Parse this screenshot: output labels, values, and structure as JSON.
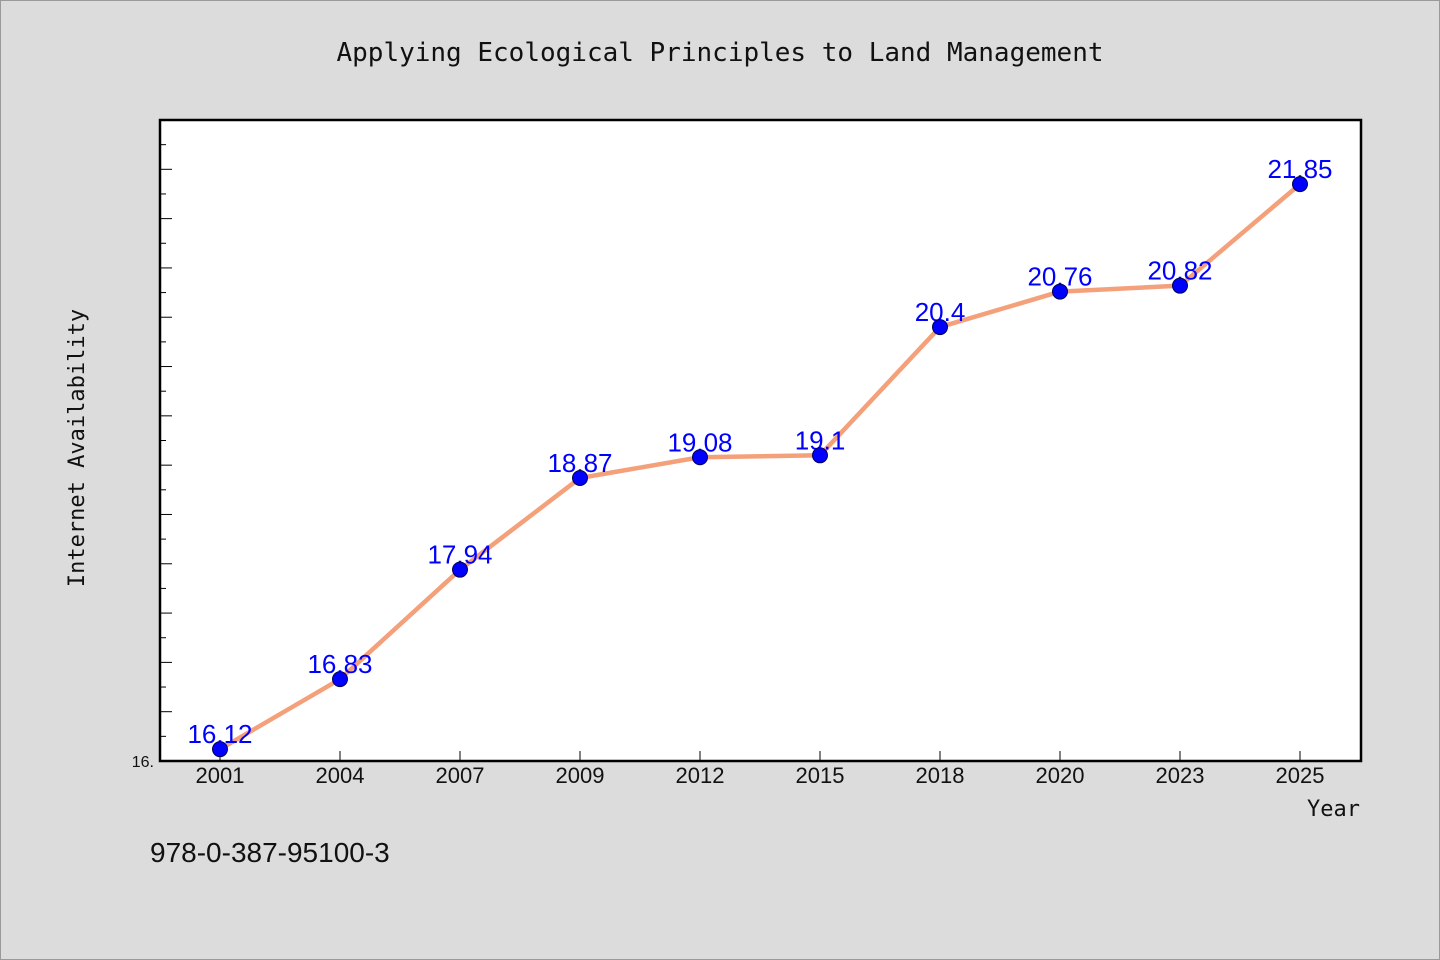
{
  "chart_data": {
    "type": "line",
    "title": "Applying Ecological Principles to Land Management",
    "xlabel": "Year",
    "ylabel": "Internet Availability",
    "categories": [
      "2001",
      "2004",
      "2007",
      "2009",
      "2012",
      "2015",
      "2018",
      "2020",
      "2023",
      "2025"
    ],
    "series": [
      {
        "values": [
          16.12,
          16.83,
          17.94,
          18.87,
          19.08,
          19.1,
          20.4,
          20.76,
          20.82,
          21.85
        ]
      }
    ],
    "data_labels": [
      "16.12",
      "16.83",
      "17.94",
      "18.87",
      "19.08",
      "19.1",
      "20.4",
      "20.76",
      "20.82",
      "21.85"
    ],
    "ylim": [
      16,
      22.5
    ],
    "y_tick_labels": [
      "16."
    ],
    "line_color": "#f4a07a",
    "marker_color": "#0000ff",
    "label_color": "#0000ff",
    "grid": false,
    "legend": "none"
  },
  "footer": {
    "isbn": "978-0-387-95100-3"
  }
}
